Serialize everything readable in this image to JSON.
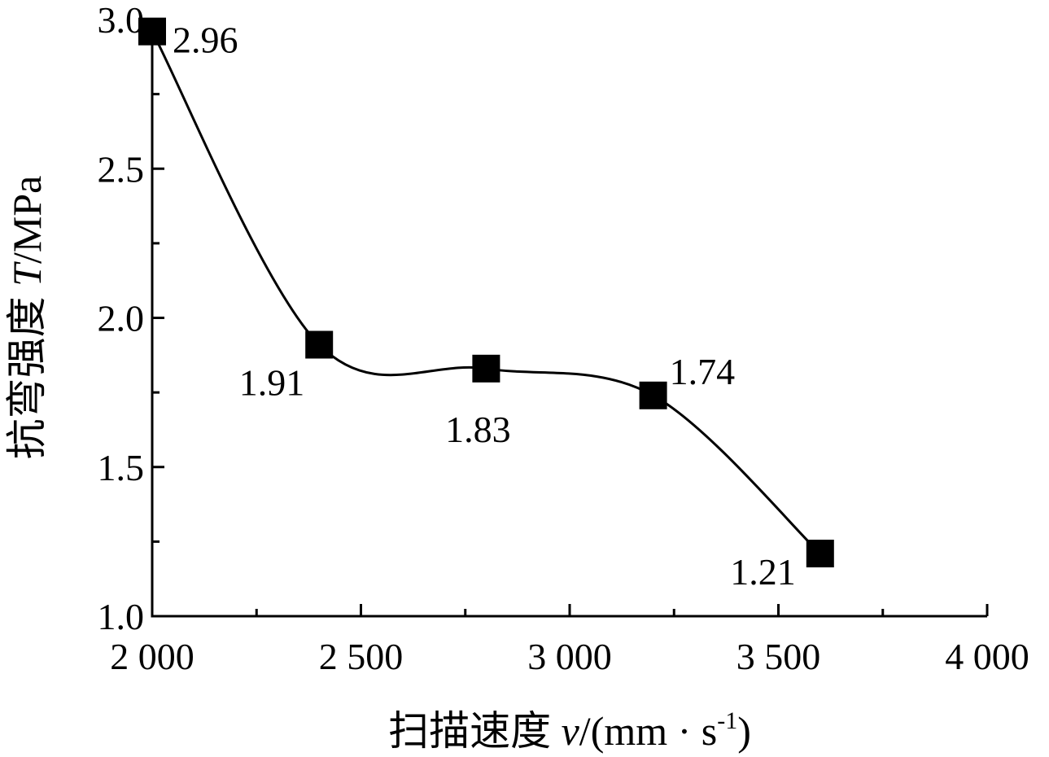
{
  "chart_data": {
    "type": "line",
    "title": "",
    "xlabel": {
      "prefix": "扫描速度 ",
      "var": "v",
      "suffix": "/(mm · s",
      "sup": "-1",
      "close": ")"
    },
    "ylabel": {
      "prefix": "抗弯强度 ",
      "var": "T",
      "suffix": "/MPa"
    },
    "xlim": [
      2000,
      4000
    ],
    "ylim": [
      1.0,
      3.0
    ],
    "x_ticks": [
      2000,
      2500,
      3000,
      3500,
      4000
    ],
    "x_tick_labels": [
      "2 000",
      "2 500",
      "3 000",
      "3 500",
      "4 000"
    ],
    "y_ticks": [
      1.0,
      1.5,
      2.0,
      2.5,
      3.0
    ],
    "y_tick_labels": [
      "1.0",
      "1.5",
      "2.0",
      "2.5",
      "3.0"
    ],
    "grid": false,
    "series": [
      {
        "marker": "square",
        "smooth": true,
        "color": "#000000",
        "x": [
          2000,
          2400,
          2800,
          3200,
          3600
        ],
        "values": [
          2.96,
          1.91,
          1.83,
          1.74,
          1.21
        ],
        "labels": [
          "2.96",
          "1.91",
          "1.83",
          "1.74",
          "1.21"
        ]
      }
    ]
  }
}
